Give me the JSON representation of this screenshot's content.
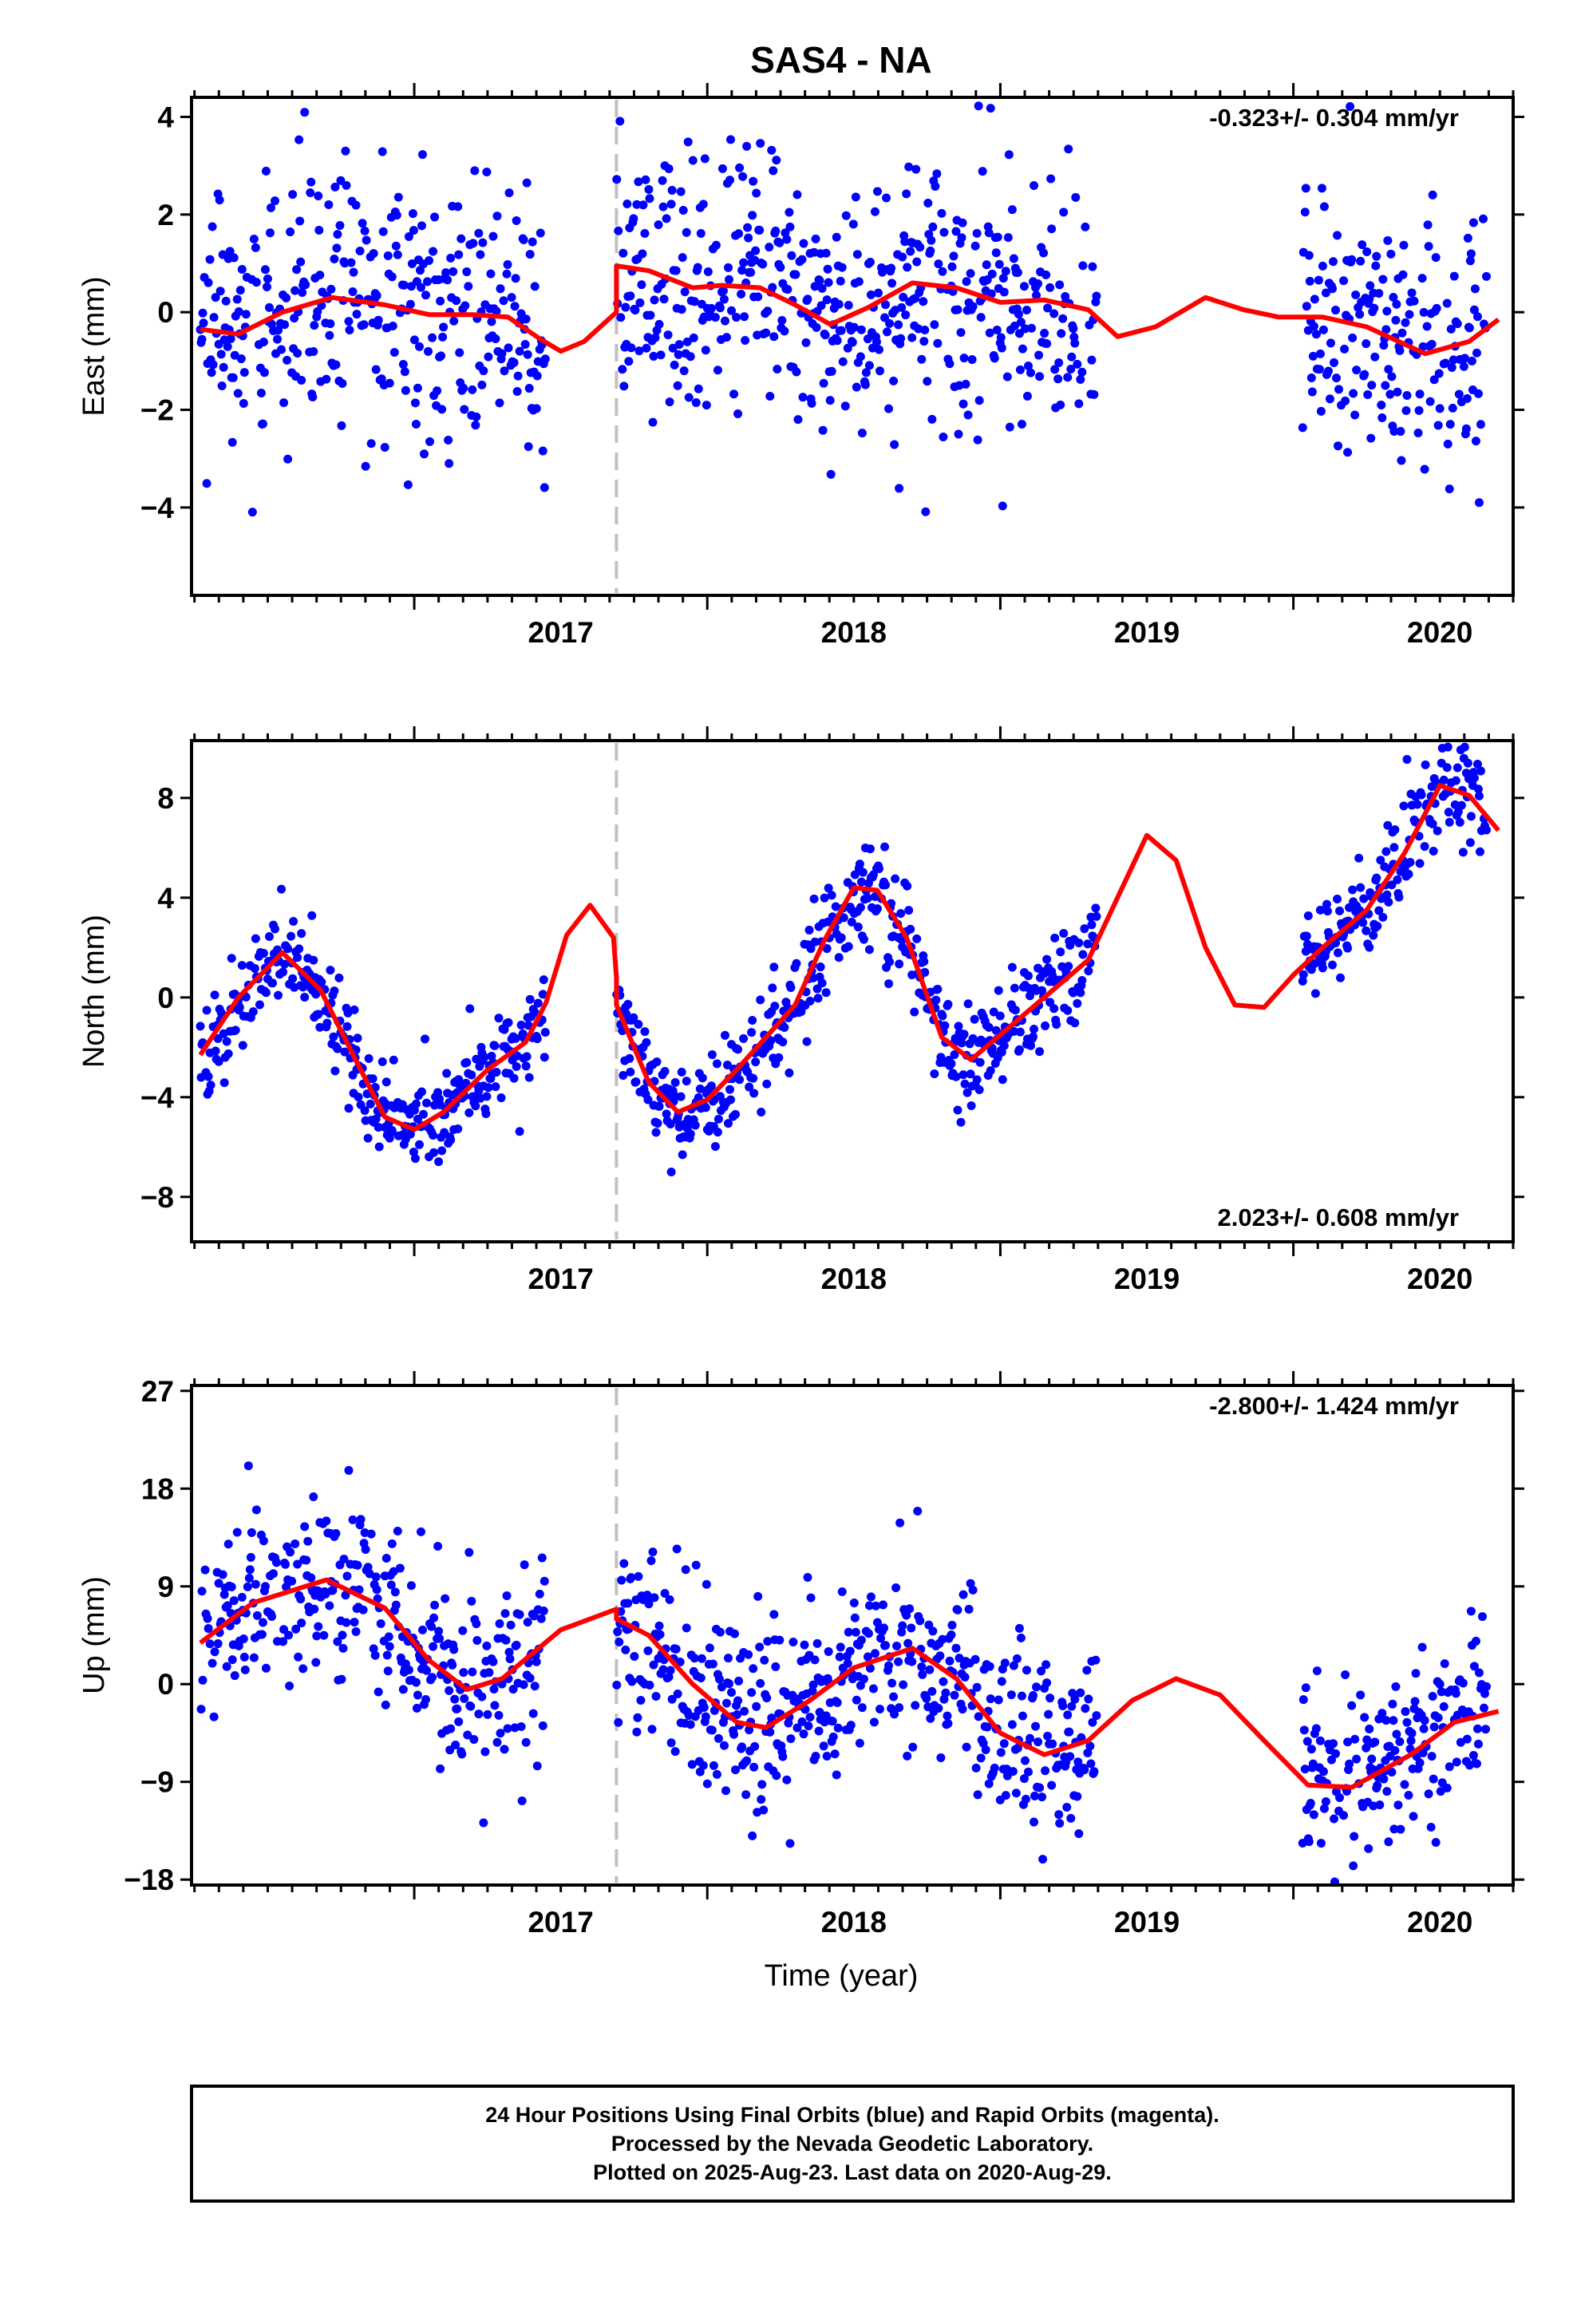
{
  "title": "SAS4 - NA",
  "footer": {
    "line1": "24 Hour Positions Using Final Orbits (blue) and Rapid Orbits (magenta).",
    "line2": "Processed by the Nevada Geodetic Laboratory.",
    "line3": "Plotted on 2025-Aug-23. Last data on 2020-Aug-29."
  },
  "colors": {
    "points": "#0000ff",
    "model": "#ff0000",
    "break_line": "#c0c0c0",
    "frame": "#000000"
  },
  "chart_data": [
    {
      "type": "scatter",
      "name": "east",
      "title": "SAS4 - NA",
      "xlabel": "",
      "ylabel": "East (mm)",
      "rate": "-0.323+/- 0.304 mm/yr",
      "rate_position": "top-right",
      "xlim": [
        2016.24,
        2020.75
      ],
      "ylim": [
        -5.8,
        4.4
      ],
      "xticks": [
        2017,
        2018,
        2019,
        2020
      ],
      "yticks": [
        -4,
        -2,
        0,
        2,
        4
      ],
      "equipment_change": 2017.69,
      "gaps": [
        [
          2017.45,
          2017.69
        ],
        [
          2019.33,
          2020.03
        ]
      ],
      "noise_sd": 1.4,
      "model_offset": 1.0,
      "model": [
        [
          2016.27,
          -0.35
        ],
        [
          2016.4,
          -0.45
        ],
        [
          2016.55,
          0.0
        ],
        [
          2016.72,
          0.3
        ],
        [
          2016.9,
          0.15
        ],
        [
          2017.05,
          -0.05
        ],
        [
          2017.2,
          -0.05
        ],
        [
          2017.32,
          -0.1
        ],
        [
          2017.43,
          -0.55
        ],
        [
          2017.5,
          -0.8
        ],
        [
          2017.58,
          -0.6
        ],
        [
          2017.69,
          0.0
        ],
        [
          2017.69,
          0.95
        ],
        [
          2017.8,
          0.85
        ],
        [
          2017.95,
          0.5
        ],
        [
          2018.05,
          0.55
        ],
        [
          2018.18,
          0.5
        ],
        [
          2018.3,
          0.15
        ],
        [
          2018.42,
          -0.25
        ],
        [
          2018.55,
          0.1
        ],
        [
          2018.7,
          0.6
        ],
        [
          2018.85,
          0.5
        ],
        [
          2019.0,
          0.2
        ],
        [
          2019.15,
          0.25
        ],
        [
          2019.3,
          0.05
        ],
        [
          2019.4,
          -0.5
        ],
        [
          2019.53,
          -0.3
        ],
        [
          2019.7,
          0.3
        ],
        [
          2019.83,
          0.05
        ],
        [
          2019.95,
          -0.1
        ],
        [
          2020.1,
          -0.1
        ],
        [
          2020.25,
          -0.3
        ],
        [
          2020.45,
          -0.85
        ],
        [
          2020.6,
          -0.6
        ],
        [
          2020.7,
          -0.15
        ]
      ]
    },
    {
      "type": "scatter",
      "name": "north",
      "xlabel": "",
      "ylabel": "North (mm)",
      "rate": "2.023+/- 0.608 mm/yr",
      "rate_position": "bottom-right",
      "xlim": [
        2016.24,
        2020.75
      ],
      "ylim": [
        -9.8,
        10.3
      ],
      "xticks": [
        2017,
        2018,
        2019,
        2020
      ],
      "yticks": [
        -8,
        -4,
        0,
        4,
        8
      ],
      "equipment_change": 2017.69,
      "gaps": [
        [
          2017.45,
          2017.69
        ],
        [
          2019.33,
          2020.03
        ]
      ],
      "noise_sd": 1.0,
      "model_offset": 0.8,
      "model": [
        [
          2016.27,
          -2.3
        ],
        [
          2016.4,
          0.0
        ],
        [
          2016.55,
          1.8
        ],
        [
          2016.68,
          0.3
        ],
        [
          2016.8,
          -2.5
        ],
        [
          2016.9,
          -4.8
        ],
        [
          2017.0,
          -5.3
        ],
        [
          2017.1,
          -4.6
        ],
        [
          2017.25,
          -2.9
        ],
        [
          2017.38,
          -1.8
        ],
        [
          2017.45,
          -0.2
        ],
        [
          2017.52,
          2.5
        ],
        [
          2017.6,
          3.7
        ],
        [
          2017.68,
          2.4
        ],
        [
          2017.69,
          0.8
        ],
        [
          2017.69,
          -0.3
        ],
        [
          2017.8,
          -3.4
        ],
        [
          2017.9,
          -4.6
        ],
        [
          2018.0,
          -4.1
        ],
        [
          2018.1,
          -2.9
        ],
        [
          2018.2,
          -1.6
        ],
        [
          2018.3,
          -0.3
        ],
        [
          2018.4,
          2.3
        ],
        [
          2018.5,
          4.4
        ],
        [
          2018.58,
          4.3
        ],
        [
          2018.68,
          2.4
        ],
        [
          2018.8,
          -1.6
        ],
        [
          2018.9,
          -2.5
        ],
        [
          2019.0,
          -1.5
        ],
        [
          2019.15,
          0.0
        ],
        [
          2019.3,
          1.5
        ],
        [
          2019.4,
          4.0
        ],
        [
          2019.5,
          6.5
        ],
        [
          2019.6,
          5.5
        ],
        [
          2019.7,
          2.0
        ],
        [
          2019.8,
          -0.3
        ],
        [
          2019.9,
          -0.4
        ],
        [
          2020.0,
          0.9
        ],
        [
          2020.1,
          2.0
        ],
        [
          2020.25,
          3.5
        ],
        [
          2020.38,
          5.8
        ],
        [
          2020.5,
          8.5
        ],
        [
          2020.6,
          8.1
        ],
        [
          2020.7,
          6.7
        ]
      ]
    },
    {
      "type": "scatter",
      "name": "up",
      "xlabel": "Time (year)",
      "ylabel": "Up (mm)",
      "rate": "-2.800+/- 1.424 mm/yr",
      "rate_position": "top-right",
      "xlim": [
        2016.24,
        2020.75
      ],
      "ylim": [
        -18.5,
        27.5
      ],
      "xticks": [
        2017,
        2018,
        2019,
        2020
      ],
      "yticks": [
        -18,
        -9,
        0,
        9,
        18,
        27
      ],
      "equipment_change": 2017.69,
      "gaps": [
        [
          2017.45,
          2017.69
        ],
        [
          2019.33,
          2020.03
        ]
      ],
      "noise_sd": 4.2,
      "model_offset": 3.0,
      "model": [
        [
          2016.27,
          3.8
        ],
        [
          2016.45,
          7.5
        ],
        [
          2016.7,
          9.6
        ],
        [
          2016.9,
          7.0
        ],
        [
          2017.05,
          2.2
        ],
        [
          2017.18,
          -0.5
        ],
        [
          2017.3,
          0.5
        ],
        [
          2017.5,
          5.0
        ],
        [
          2017.69,
          6.9
        ],
        [
          2017.69,
          6.0
        ],
        [
          2017.8,
          4.5
        ],
        [
          2017.95,
          0.0
        ],
        [
          2018.1,
          -3.5
        ],
        [
          2018.2,
          -4.0
        ],
        [
          2018.35,
          -1.5
        ],
        [
          2018.5,
          1.5
        ],
        [
          2018.7,
          3.3
        ],
        [
          2018.85,
          0.5
        ],
        [
          2019.0,
          -4.5
        ],
        [
          2019.15,
          -6.5
        ],
        [
          2019.3,
          -5.2
        ],
        [
          2019.45,
          -1.5
        ],
        [
          2019.6,
          0.5
        ],
        [
          2019.75,
          -1.0
        ],
        [
          2019.9,
          -5.2
        ],
        [
          2020.05,
          -9.3
        ],
        [
          2020.2,
          -9.5
        ],
        [
          2020.4,
          -6.5
        ],
        [
          2020.55,
          -3.5
        ],
        [
          2020.7,
          -2.5
        ]
      ]
    }
  ]
}
